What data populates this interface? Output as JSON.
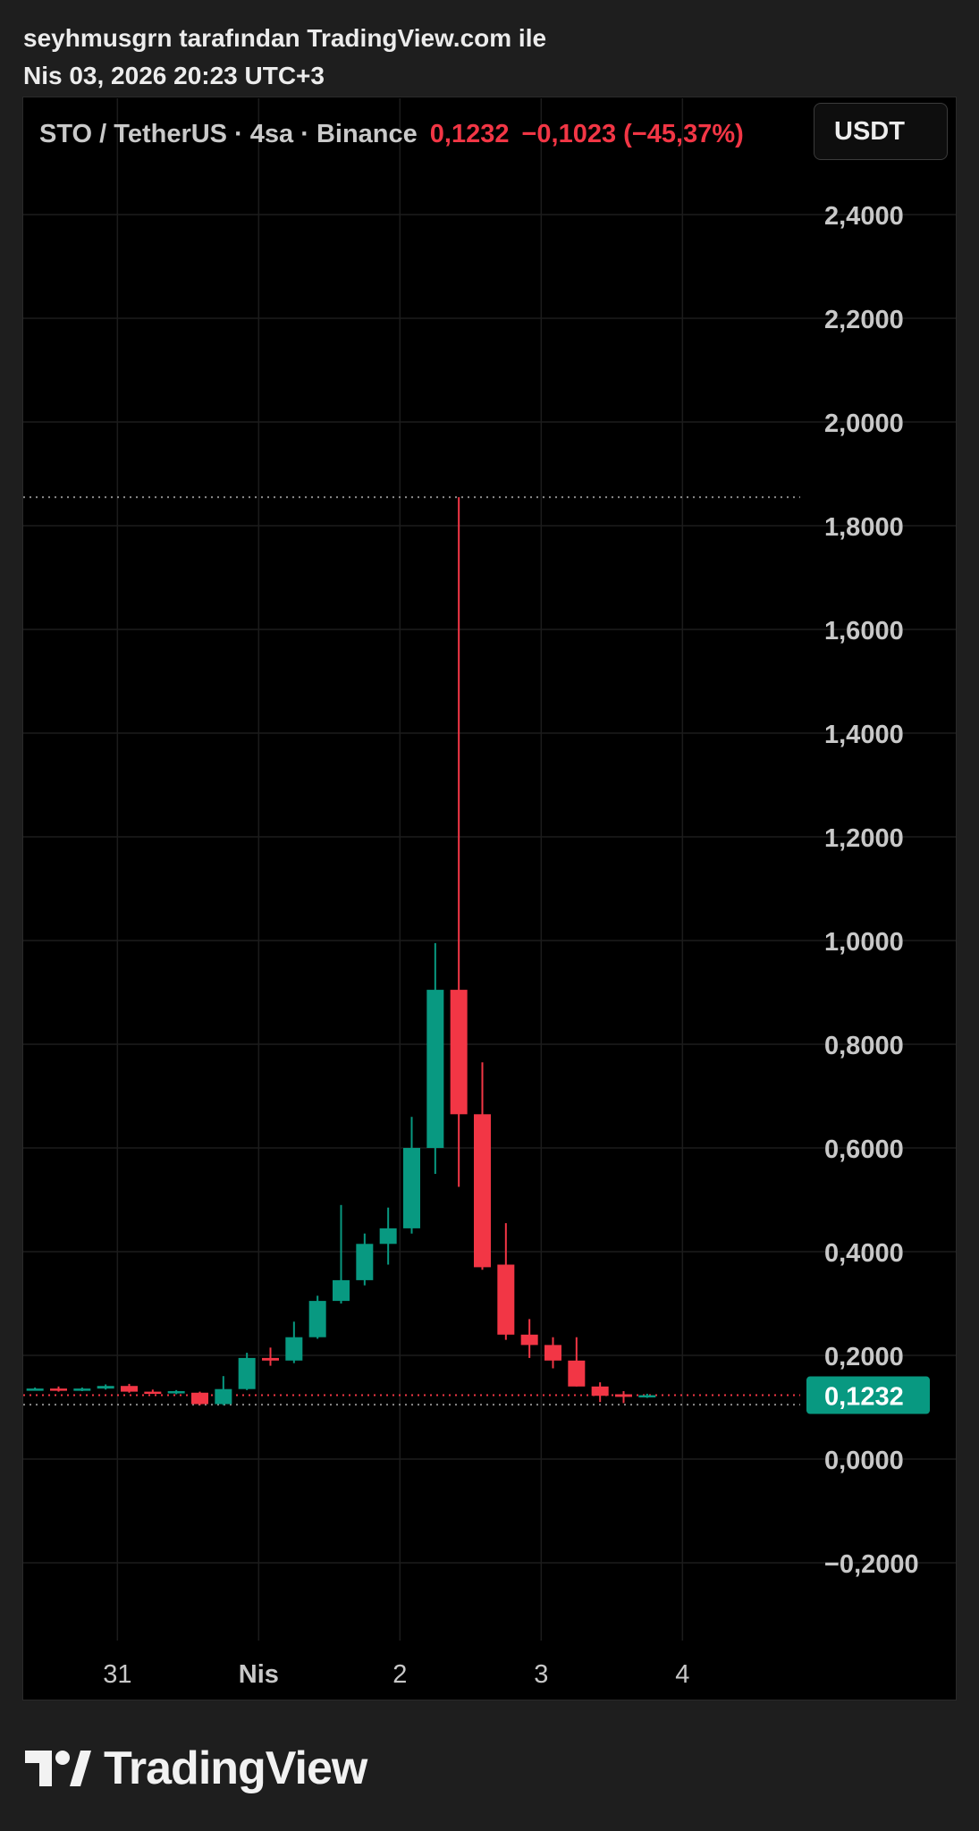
{
  "header": {
    "attribution": "seyhmusgrn tarafından TradingView.com ile",
    "datetime": "Nis 03, 2026 20:23 UTC+3"
  },
  "legend": {
    "symbol": "STO / TetherUS · 4sa · Binance",
    "price": "0,1232",
    "change": "−0,1023 (−45,37%)"
  },
  "currency_button": "USDT",
  "footer": {
    "brand": "TradingView"
  },
  "colors": {
    "up": "#089981",
    "down": "#f23645",
    "grid": "#1c1c1c",
    "axis_text": "#c8c8c8",
    "price_badge": "#089981"
  },
  "chart_data": {
    "type": "candlestick",
    "interval": "4sa",
    "ylim": [
      -0.33,
      2.58
    ],
    "y_ticks": [
      {
        "value": 2.4,
        "label": "2,4000"
      },
      {
        "value": 2.2,
        "label": "2,2000"
      },
      {
        "value": 2.0,
        "label": "2,0000"
      },
      {
        "value": 1.8,
        "label": "1,8000"
      },
      {
        "value": 1.6,
        "label": "1,6000"
      },
      {
        "value": 1.4,
        "label": "1,4000"
      },
      {
        "value": 1.2,
        "label": "1,2000"
      },
      {
        "value": 1.0,
        "label": "1,0000"
      },
      {
        "value": 0.8,
        "label": "0,8000"
      },
      {
        "value": 0.6,
        "label": "0,6000"
      },
      {
        "value": 0.4,
        "label": "0,4000"
      },
      {
        "value": 0.2,
        "label": "0,2000"
      },
      {
        "value": 0.0,
        "label": "0,0000"
      },
      {
        "value": -0.2,
        "label": "−0,2000"
      }
    ],
    "x_ticks": [
      {
        "index": 3.5,
        "label": "31",
        "bold": false
      },
      {
        "index": 9.5,
        "label": "Nis",
        "bold": true
      },
      {
        "index": 15.5,
        "label": "2",
        "bold": false
      },
      {
        "index": 21.5,
        "label": "3",
        "bold": false
      },
      {
        "index": 27.5,
        "label": "4",
        "bold": false
      }
    ],
    "x_index_range": [
      -0.5,
      32.5
    ],
    "last_price": {
      "value": 0.1232,
      "label": "0,1232"
    },
    "high_line": 1.855,
    "low_line": 0.105,
    "candles": [
      {
        "o": 0.135,
        "h": 0.138,
        "l": 0.132,
        "c": 0.136
      },
      {
        "o": 0.136,
        "h": 0.14,
        "l": 0.13,
        "c": 0.133
      },
      {
        "o": 0.133,
        "h": 0.138,
        "l": 0.131,
        "c": 0.136
      },
      {
        "o": 0.136,
        "h": 0.144,
        "l": 0.134,
        "c": 0.141
      },
      {
        "o": 0.141,
        "h": 0.145,
        "l": 0.128,
        "c": 0.13
      },
      {
        "o": 0.13,
        "h": 0.134,
        "l": 0.126,
        "c": 0.128
      },
      {
        "o": 0.128,
        "h": 0.133,
        "l": 0.125,
        "c": 0.131
      },
      {
        "o": 0.128,
        "h": 0.13,
        "l": 0.104,
        "c": 0.106
      },
      {
        "o": 0.106,
        "h": 0.16,
        "l": 0.104,
        "c": 0.135
      },
      {
        "o": 0.135,
        "h": 0.205,
        "l": 0.133,
        "c": 0.195
      },
      {
        "o": 0.195,
        "h": 0.215,
        "l": 0.18,
        "c": 0.19
      },
      {
        "o": 0.19,
        "h": 0.265,
        "l": 0.185,
        "c": 0.235
      },
      {
        "o": 0.235,
        "h": 0.315,
        "l": 0.232,
        "c": 0.305
      },
      {
        "o": 0.305,
        "h": 0.49,
        "l": 0.3,
        "c": 0.345
      },
      {
        "o": 0.345,
        "h": 0.435,
        "l": 0.335,
        "c": 0.415
      },
      {
        "o": 0.415,
        "h": 0.485,
        "l": 0.375,
        "c": 0.445
      },
      {
        "o": 0.445,
        "h": 0.66,
        "l": 0.435,
        "c": 0.6
      },
      {
        "o": 0.6,
        "h": 0.995,
        "l": 0.55,
        "c": 0.905
      },
      {
        "o": 0.905,
        "h": 1.855,
        "l": 0.525,
        "c": 0.665
      },
      {
        "o": 0.665,
        "h": 0.765,
        "l": 0.365,
        "c": 0.37
      },
      {
        "o": 0.375,
        "h": 0.455,
        "l": 0.23,
        "c": 0.24
      },
      {
        "o": 0.24,
        "h": 0.27,
        "l": 0.195,
        "c": 0.22
      },
      {
        "o": 0.22,
        "h": 0.235,
        "l": 0.175,
        "c": 0.19
      },
      {
        "o": 0.19,
        "h": 0.235,
        "l": 0.14,
        "c": 0.14
      },
      {
        "o": 0.14,
        "h": 0.148,
        "l": 0.11,
        "c": 0.122
      },
      {
        "o": 0.125,
        "h": 0.131,
        "l": 0.108,
        "c": 0.12
      },
      {
        "o": 0.12,
        "h": 0.126,
        "l": 0.118,
        "c": 0.1232
      }
    ]
  }
}
